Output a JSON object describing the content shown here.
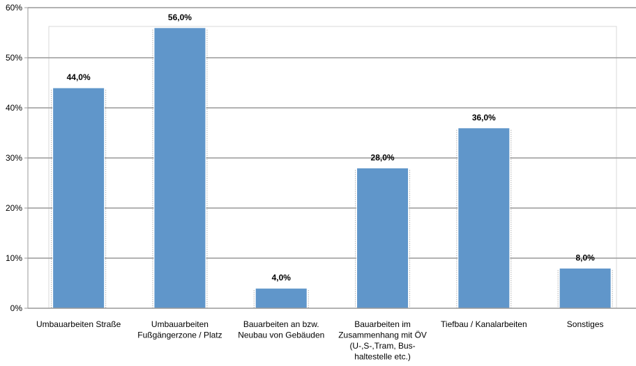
{
  "chart_data": {
    "type": "bar",
    "categories": [
      "Umbauarbeiten Straße",
      "Umbauarbeiten Fußgängerzone / Platz",
      "Bauarbeiten an bzw. Neubau von Gebäuden",
      "Bauarbeiten im Zusammenhang mit ÖV (U-,S-,Tram, Bus-haltestelle etc.)",
      "Tiefbau / Kanalarbeiten",
      "Sonstiges"
    ],
    "category_label_lines": [
      [
        "Umbauarbeiten Straße"
      ],
      [
        "Umbauarbeiten",
        "Fußgängerzone / Platz"
      ],
      [
        "Bauarbeiten an bzw.",
        "Neubau von Gebäuden"
      ],
      [
        "Bauarbeiten im",
        "Zusammenhang mit ÖV",
        "(U-,S-,Tram, Bus-",
        "haltestelle etc.)"
      ],
      [
        "Tiefbau / Kanalarbeiten"
      ],
      [
        "Sonstiges"
      ]
    ],
    "values": [
      44.0,
      56.0,
      4.0,
      28.0,
      36.0,
      8.0
    ],
    "data_labels": [
      "44,0%",
      "56,0%",
      "4,0%",
      "28,0%",
      "36,0%",
      "8,0%"
    ],
    "y_ticks": [
      0,
      10,
      20,
      30,
      40,
      50,
      60
    ],
    "y_tick_labels": [
      "0%",
      "10%",
      "20%",
      "30%",
      "40%",
      "50%",
      "60%"
    ],
    "ylim": [
      0,
      60
    ],
    "grid": true,
    "legend": "none",
    "bar_color": "#6096CA",
    "gridline_color": "#999999",
    "title": "",
    "xlabel": "",
    "ylabel": ""
  }
}
